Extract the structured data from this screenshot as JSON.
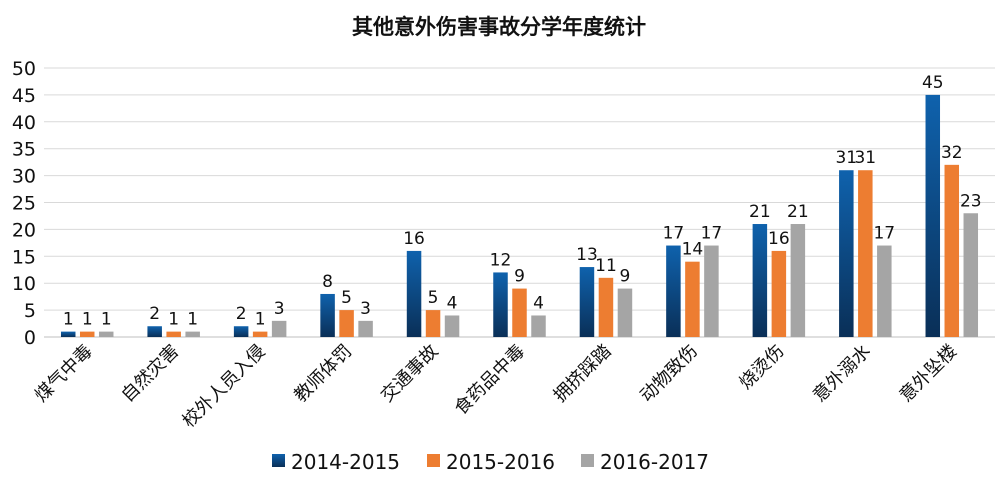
{
  "chart_data": {
    "type": "bar",
    "title": "其他意外伤害事故分学年度统计",
    "xlabel": "",
    "ylabel": "",
    "ylim": [
      0,
      50
    ],
    "yticks": [
      0,
      5,
      10,
      15,
      20,
      25,
      30,
      35,
      40,
      45,
      50
    ],
    "grid": true,
    "legend_position": "bottom",
    "categories": [
      "煤气中毒",
      "自然灾害",
      "校外人员入侵",
      "教师体罚",
      "交通事故",
      "食药品中毒",
      "拥挤踩踏",
      "动物致伤",
      "烧烫伤",
      "意外溺水",
      "意外坠楼"
    ],
    "series": [
      {
        "name": "2014-2015",
        "color": "#0f62ad",
        "color_dark": "#0a2f57",
        "gradient": true,
        "values": [
          1,
          2,
          2,
          8,
          16,
          12,
          13,
          17,
          21,
          31,
          45
        ]
      },
      {
        "name": "2015-2016",
        "color": "#ed7d31",
        "gradient": false,
        "values": [
          1,
          1,
          1,
          5,
          5,
          9,
          11,
          14,
          16,
          31,
          32
        ]
      },
      {
        "name": "2016-2017",
        "color": "#a5a5a5",
        "gradient": false,
        "values": [
          1,
          1,
          3,
          3,
          4,
          4,
          9,
          17,
          21,
          17,
          23
        ]
      }
    ]
  }
}
